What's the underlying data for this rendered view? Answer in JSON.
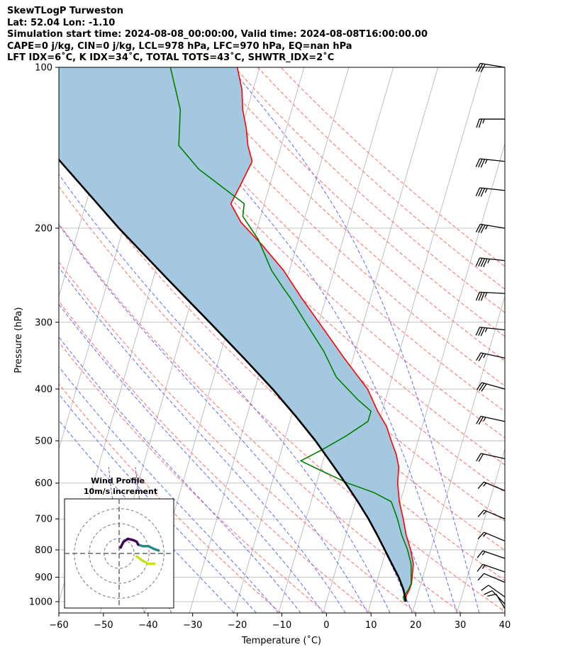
{
  "header": {
    "line1": "SkewTLogP Turweston",
    "line2": "Lat: 52.04   Lon: -1.10",
    "line3": "Simulation start time: 2024-08-08_00:00:00, Valid time: 2024-08-08T16:00:00.00",
    "line4": "CAPE=0 j/kg, CIN=0 j/kg, LCL=978 hPa, LFC=970 hPa, EQ=nan hPa",
    "line5": "LFT IDX=6˚C, K IDX=34˚C, TOTAL TOTS=43˚C, SHWTR_IDX=2˚C"
  },
  "colors": {
    "temperature": "#ff0000",
    "dewpoint": "#008000",
    "parcel": "#000000",
    "cape_fill": "#a4c8e0",
    "dry_adiabat": "#ff6a6a",
    "moist_adiabat": "#5a6bff",
    "mixing_ratio": "#9040c0",
    "isotherm": "#b0b0b0",
    "hodo_low": "#c8e020",
    "hodo_mid": "#2a8a8a",
    "hodo_high": "#3b0a50"
  },
  "chart_data": {
    "type": "line",
    "skew_t": true,
    "xlabel": "Temperature (˚C)",
    "ylabel": "Pressure (hPa)",
    "xlim": [
      -60,
      40
    ],
    "ylim_hpa": [
      1050,
      100
    ],
    "y_scale": "log",
    "x_ticks": [
      "−60",
      "−50",
      "−40",
      "−30",
      "−20",
      "−10",
      "0",
      "10",
      "20",
      "30",
      "40"
    ],
    "y_ticks": [
      "100",
      "200",
      "300",
      "400",
      "500",
      "600",
      "700",
      "800",
      "900",
      "1000"
    ],
    "series": [
      {
        "key": "temperature",
        "points": [
          [
            1000,
            17.8
          ],
          [
            975,
            17.5
          ],
          [
            950,
            17.8
          ],
          [
            925,
            17.9
          ],
          [
            900,
            17.6
          ],
          [
            850,
            17.0
          ],
          [
            800,
            15.5
          ],
          [
            750,
            13.5
          ],
          [
            700,
            11.8
          ],
          [
            650,
            9.8
          ],
          [
            600,
            8.2
          ],
          [
            560,
            7.4
          ],
          [
            530,
            6.0
          ],
          [
            500,
            4.0
          ],
          [
            470,
            2.0
          ],
          [
            440,
            -1.0
          ],
          [
            400,
            -4.7
          ],
          [
            350,
            -12.0
          ],
          [
            300,
            -20.0
          ],
          [
            270,
            -25.5
          ],
          [
            240,
            -31.3
          ],
          [
            215,
            -37.8
          ],
          [
            195,
            -44.0
          ],
          [
            180,
            -47.5
          ],
          [
            165,
            -46.5
          ],
          [
            150,
            -45.5
          ],
          [
            140,
            -47.5
          ],
          [
            130,
            -49.0
          ],
          [
            120,
            -51.0
          ],
          [
            110,
            -52.5
          ],
          [
            100,
            -55.0
          ]
        ]
      },
      {
        "key": "dewpoint",
        "points": [
          [
            1000,
            17.5
          ],
          [
            980,
            16.9
          ],
          [
            950,
            17.6
          ],
          [
            925,
            17.8
          ],
          [
            900,
            17.4
          ],
          [
            850,
            16.5
          ],
          [
            800,
            14.8
          ],
          [
            750,
            12.5
          ],
          [
            700,
            10.5
          ],
          [
            650,
            8.0
          ],
          [
            625,
            3.5
          ],
          [
            600,
            -3.0
          ],
          [
            570,
            -9.5
          ],
          [
            545,
            -15.0
          ],
          [
            520,
            -11.0
          ],
          [
            490,
            -6.5
          ],
          [
            460,
            -2.5
          ],
          [
            440,
            -2.5
          ],
          [
            420,
            -6.0
          ],
          [
            380,
            -12.5
          ],
          [
            340,
            -17.0
          ],
          [
            300,
            -23.0
          ],
          [
            270,
            -28.0
          ],
          [
            260,
            -30.0
          ],
          [
            240,
            -34.0
          ],
          [
            210,
            -39.0
          ],
          [
            190,
            -44.0
          ],
          [
            180,
            -44.5
          ],
          [
            155,
            -57.0
          ],
          [
            140,
            -63.0
          ],
          [
            120,
            -65.0
          ],
          [
            100,
            -70.0
          ]
        ]
      },
      {
        "key": "parcel",
        "points": [
          [
            1000,
            17.8
          ],
          [
            950,
            16.5
          ],
          [
            900,
            14.6
          ],
          [
            850,
            12.2
          ],
          [
            800,
            9.7
          ],
          [
            750,
            7.0
          ],
          [
            700,
            4.0
          ],
          [
            650,
            0.5
          ],
          [
            600,
            -3.5
          ],
          [
            550,
            -8.0
          ],
          [
            500,
            -13.0
          ],
          [
            450,
            -19.0
          ],
          [
            400,
            -26.0
          ],
          [
            350,
            -34.5
          ],
          [
            300,
            -44.5
          ],
          [
            250,
            -56.5
          ],
          [
            200,
            -71.0
          ],
          [
            150,
            -88.5
          ],
          [
            120,
            -102.0
          ],
          [
            100,
            -112.0
          ]
        ]
      }
    ],
    "background": {
      "isotherms_step": 10,
      "dry_adiabats_theta": [
        260,
        270,
        280,
        290,
        300,
        310,
        320,
        330,
        340,
        350,
        360,
        370,
        380,
        390,
        400,
        410,
        420,
        430,
        440
      ],
      "moist_adiabats_start_t": [
        -20,
        -15,
        -10,
        -5,
        0,
        5,
        10,
        15,
        20,
        25,
        30,
        35
      ],
      "mixing_ratio_lines_start_t": [
        -40,
        -34
      ]
    },
    "wind_barbs": [
      {
        "p": 100,
        "speed": 30,
        "dir": 255
      },
      {
        "p": 125,
        "speed": 25,
        "dir": 270
      },
      {
        "p": 150,
        "speed": 35,
        "dir": 260
      },
      {
        "p": 170,
        "speed": 35,
        "dir": 260
      },
      {
        "p": 200,
        "speed": 35,
        "dir": 255
      },
      {
        "p": 230,
        "speed": 45,
        "dir": 260
      },
      {
        "p": 265,
        "speed": 35,
        "dir": 265
      },
      {
        "p": 310,
        "speed": 35,
        "dir": 260
      },
      {
        "p": 350,
        "speed": 25,
        "dir": 250
      },
      {
        "p": 400,
        "speed": 30,
        "dir": 245
      },
      {
        "p": 460,
        "speed": 25,
        "dir": 250
      },
      {
        "p": 540,
        "speed": 20,
        "dir": 250
      },
      {
        "p": 620,
        "speed": 15,
        "dir": 235
      },
      {
        "p": 700,
        "speed": 15,
        "dir": 235
      },
      {
        "p": 770,
        "speed": 15,
        "dir": 235
      },
      {
        "p": 830,
        "speed": 15,
        "dir": 240
      },
      {
        "p": 880,
        "speed": 15,
        "dir": 240
      },
      {
        "p": 920,
        "speed": 10,
        "dir": 235
      },
      {
        "p": 980,
        "speed": 10,
        "dir": 220
      },
      {
        "p": 1010,
        "speed": 10,
        "dir": 210
      },
      {
        "p": 1030,
        "speed": 10,
        "dir": 200
      }
    ]
  },
  "hodograph": {
    "title": "Wind Profile",
    "subtitle": "10m/s increment",
    "ring_step_ms": 10,
    "rings": 3,
    "range_ms": 30,
    "segments": [
      {
        "color_key": "hodo_low",
        "points": [
          [
            12,
            -2
          ],
          [
            16,
            -5
          ],
          [
            20,
            -7
          ],
          [
            24,
            -7
          ]
        ]
      },
      {
        "color_key": "hodo_mid",
        "points": [
          [
            13,
            6
          ],
          [
            16,
            5
          ],
          [
            20,
            5
          ],
          [
            24,
            3
          ],
          [
            27,
            2
          ]
        ]
      },
      {
        "color_key": "hodo_high",
        "points": [
          [
            1,
            4
          ],
          [
            3,
            8
          ],
          [
            6,
            10
          ],
          [
            10,
            9
          ],
          [
            12,
            8
          ],
          [
            13,
            6
          ]
        ]
      }
    ]
  }
}
